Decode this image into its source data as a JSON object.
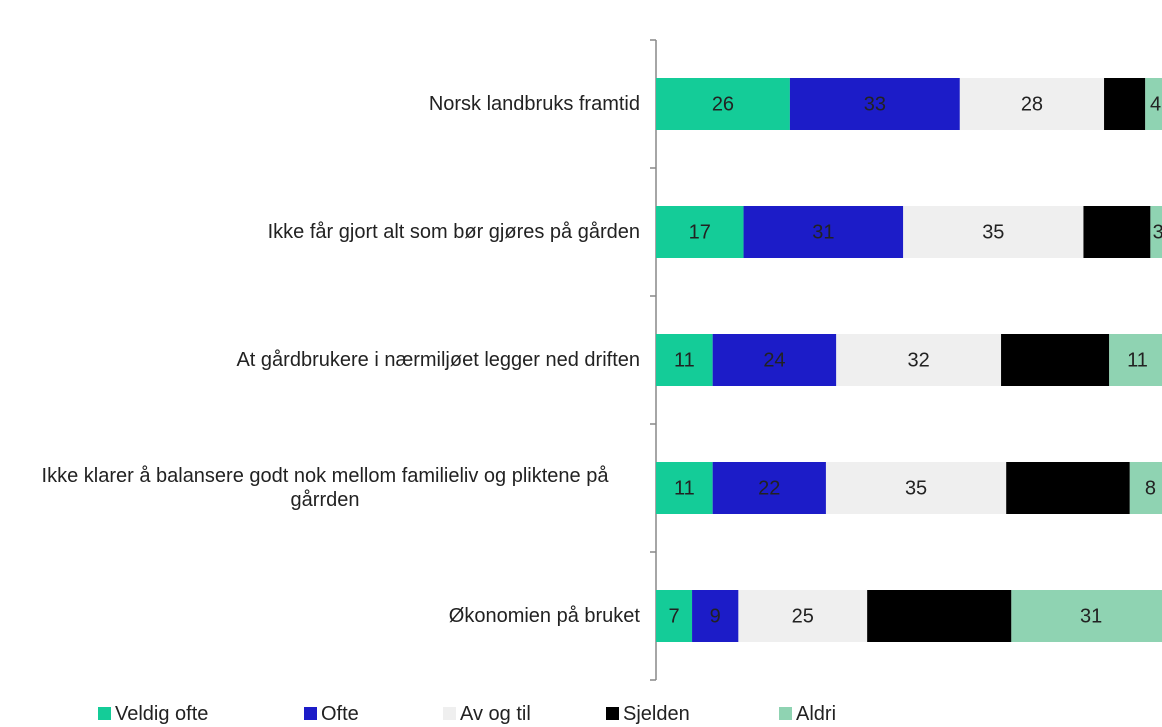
{
  "chart_data": {
    "type": "stacked-bar-horizontal",
    "categories": [
      "Norsk landbruks framtid",
      "Ikke får gjort alt som bør gjøres på gården",
      "At gårdbrukere i nærmiljøet legger ned driften",
      "Ikke klarer å balansere godt nok mellom familieliv og pliktene på gårrden",
      "Økonomien på bruket"
    ],
    "series": [
      {
        "name": "Veldig ofte",
        "color": "#14cc98",
        "values": [
          26,
          17,
          11,
          11,
          7
        ]
      },
      {
        "name": "Ofte",
        "color": "#1c1cc8",
        "values": [
          33,
          31,
          24,
          22,
          9
        ]
      },
      {
        "name": "Av og til",
        "color": "#efefef",
        "values": [
          28,
          35,
          32,
          35,
          25
        ]
      },
      {
        "name": "Sjelden",
        "color": "#000000",
        "values": [
          8,
          13,
          21,
          24,
          28
        ]
      },
      {
        "name": "Aldri",
        "color": "#8fd3b2",
        "values": [
          4,
          3,
          11,
          8,
          31
        ]
      }
    ],
    "xlim": [
      0,
      100
    ],
    "legend": "bottom"
  }
}
